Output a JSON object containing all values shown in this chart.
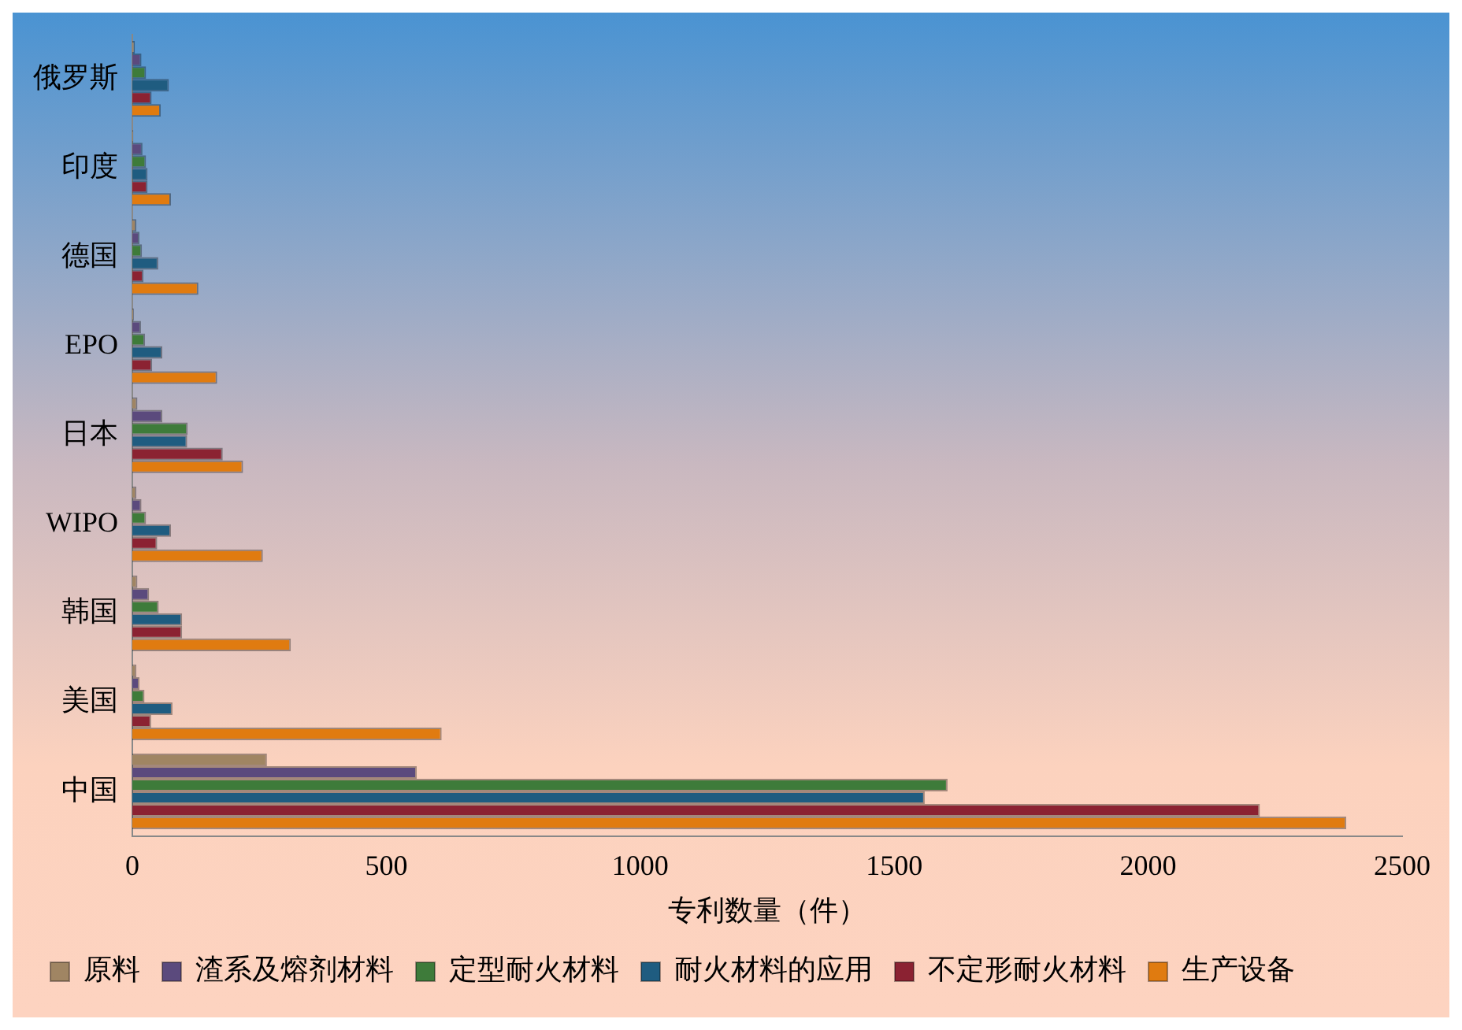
{
  "chart_data": {
    "type": "bar",
    "orientation": "horizontal",
    "xlabel": "专利数量（件）",
    "categories": [
      "俄罗斯",
      "印度",
      "德国",
      "EPO",
      "日本",
      "WIPO",
      "韩国",
      "美国",
      "中国"
    ],
    "series": [
      {
        "name": "原料",
        "color": "#a08563",
        "values": [
          5,
          2,
          8,
          3,
          10,
          8,
          10,
          8,
          265
        ]
      },
      {
        "name": "渣系及熔剂材料",
        "color": "#5b4a7d",
        "values": [
          18,
          20,
          14,
          17,
          59,
          18,
          33,
          14,
          560
        ]
      },
      {
        "name": "定型耐火材料",
        "color": "#3e7b3a",
        "values": [
          27,
          27,
          19,
          25,
          109,
          27,
          52,
          24,
          1605
        ]
      },
      {
        "name": "耐火材料的应用",
        "color": "#1f5c80",
        "values": [
          72,
          30,
          51,
          59,
          108,
          76,
          98,
          79,
          1560
        ]
      },
      {
        "name": "不定形耐火材料",
        "color": "#8b2232",
        "values": [
          38,
          30,
          22,
          39,
          178,
          49,
          98,
          37,
          2220
        ]
      },
      {
        "name": "生产设备",
        "color": "#e07b10",
        "values": [
          56,
          76,
          130,
          167,
          218,
          257,
          312,
          609,
          2390
        ]
      }
    ],
    "xlim": [
      0,
      2500
    ],
    "xticks": [
      0,
      500,
      1000,
      1500,
      2000,
      2500
    ],
    "grid": false,
    "legend": "bottom"
  }
}
